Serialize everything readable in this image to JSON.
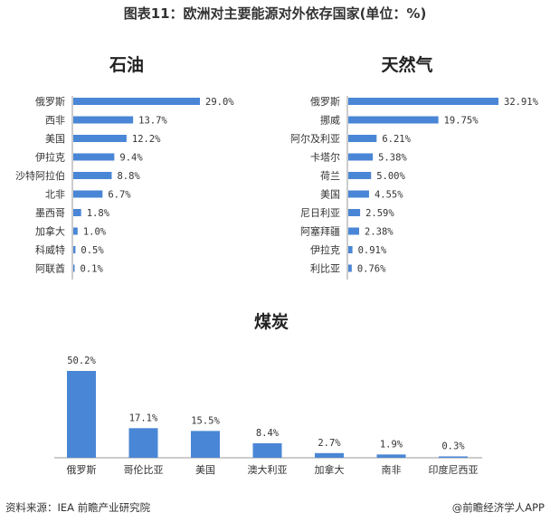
{
  "title": "图表11：欧洲对主要能源对外依存国家(单位：%)",
  "source": "资料来源：IEA 前瞻产业研究院",
  "credit": "@前瞻经济学人APP",
  "bar_color": "#4a86d6",
  "chart_data": [
    {
      "type": "bar",
      "orientation": "horizontal",
      "title": "石油",
      "unit": "%",
      "categories": [
        "俄罗斯",
        "西非",
        "美国",
        "伊拉克",
        "沙特阿拉伯",
        "北非",
        "墨西哥",
        "加拿大",
        "科威特",
        "阿联酋"
      ],
      "values": [
        29.0,
        13.7,
        12.2,
        9.4,
        8.8,
        6.7,
        1.8,
        1.0,
        0.5,
        0.1
      ],
      "value_labels": [
        "29.0%",
        "13.7%",
        "12.2%",
        "9.4%",
        "8.8%",
        "6.7%",
        "1.8%",
        "1.0%",
        "0.5%",
        "0.1%"
      ]
    },
    {
      "type": "bar",
      "orientation": "horizontal",
      "title": "天然气",
      "unit": "%",
      "categories": [
        "俄罗斯",
        "挪威",
        "阿尔及利亚",
        "卡塔尔",
        "荷兰",
        "美国",
        "尼日利亚",
        "阿塞拜疆",
        "伊拉克",
        "利比亚"
      ],
      "values": [
        32.91,
        19.75,
        6.21,
        5.38,
        5.0,
        4.55,
        2.59,
        2.38,
        0.91,
        0.76
      ],
      "value_labels": [
        "32.91%",
        "19.75%",
        "6.21%",
        "5.38%",
        "5.00%",
        "4.55%",
        "2.59%",
        "2.38%",
        "0.91%",
        "0.76%"
      ]
    },
    {
      "type": "bar",
      "orientation": "vertical",
      "title": "煤炭",
      "unit": "%",
      "categories": [
        "俄罗斯",
        "哥伦比亚",
        "美国",
        "澳大利亚",
        "加拿大",
        "南非",
        "印度尼西亚"
      ],
      "values": [
        50.2,
        17.1,
        15.5,
        8.4,
        2.7,
        1.9,
        0.3
      ],
      "value_labels": [
        "50.2%",
        "17.1%",
        "15.5%",
        "8.4%",
        "2.7%",
        "1.9%",
        "0.3%"
      ]
    }
  ]
}
